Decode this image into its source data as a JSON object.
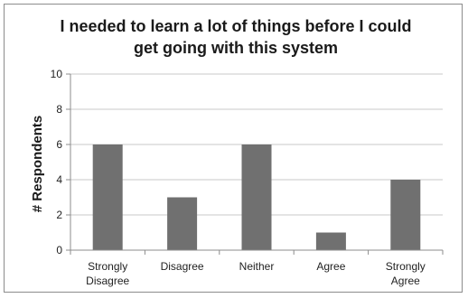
{
  "chart_data": {
    "type": "bar",
    "title_lines": [
      "I needed to learn a lot of things before I could",
      "get going with this system"
    ],
    "ylabel": "# Respondents",
    "xlabel": "",
    "categories": [
      [
        "Strongly",
        "Disagree"
      ],
      [
        "Disagree"
      ],
      [
        "Neither"
      ],
      [
        "Agree"
      ],
      [
        "Strongly",
        "Agree"
      ]
    ],
    "values": [
      6,
      3,
      6,
      1,
      4
    ],
    "ylim": [
      0,
      10
    ],
    "yticks": [
      0,
      2,
      4,
      6,
      8,
      10
    ],
    "grid": true,
    "legend": "none",
    "bar_color": "#707070",
    "grid_color": "#c8c8c8",
    "axis_color": "#8c8c8c"
  }
}
